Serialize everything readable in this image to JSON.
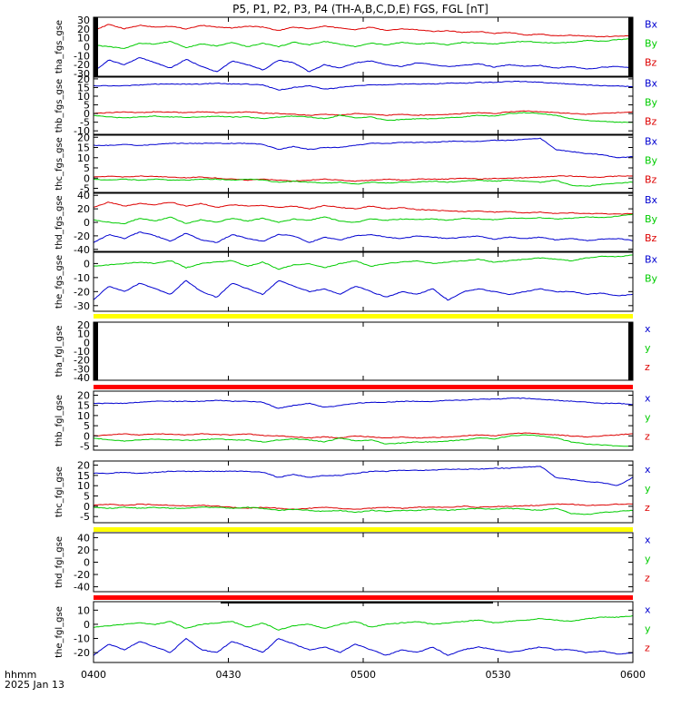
{
  "title": "P5, P1, P2, P3, P4 (TH-A,B,C,D,E) FGS, FGL [nT]",
  "footer": {
    "xlabel": "hhmm",
    "date": "2025 Jan 13",
    "x_ticks": [
      "0400",
      "0430",
      "0500",
      "0530",
      "0600"
    ]
  },
  "colors": {
    "x": "#0000d0",
    "y": "#00cc00",
    "z": "#dd0000",
    "bar_yellow": "#ffff00",
    "bar_red": "#ff0000"
  },
  "chart_data": [
    {
      "type": "line",
      "ylabel": "tha_fgs_gse",
      "y_ticks": [
        30,
        20,
        10,
        0,
        -10,
        -20,
        -30
      ],
      "ylim": [
        -33,
        33
      ],
      "series": [
        {
          "name": "Bz",
          "values": [
            18,
            25,
            20,
            24,
            22,
            23,
            20,
            24,
            22,
            21,
            23,
            22,
            18,
            22,
            20,
            23,
            21,
            19,
            22,
            18,
            20,
            19,
            17,
            18,
            16,
            17,
            15,
            16,
            13,
            14,
            12,
            13,
            12,
            11,
            12,
            12
          ]
        },
        {
          "name": "By",
          "values": [
            2,
            0,
            -2,
            4,
            3,
            6,
            -1,
            3,
            1,
            5,
            0,
            4,
            0,
            5,
            2,
            6,
            3,
            0,
            4,
            2,
            5,
            3,
            4,
            2,
            5,
            4,
            3,
            5,
            6,
            5,
            4,
            5,
            7,
            6,
            8,
            9
          ]
        },
        {
          "name": "Bx",
          "values": [
            -28,
            -15,
            -20,
            -12,
            -18,
            -24,
            -14,
            -22,
            -28,
            -16,
            -20,
            -26,
            -15,
            -18,
            -28,
            -20,
            -24,
            -18,
            -16,
            -20,
            -22,
            -18,
            -20,
            -22,
            -21,
            -19,
            -23,
            -20,
            -22,
            -21,
            -24,
            -22,
            -25,
            -23,
            -22,
            -24
          ]
        }
      ]
    },
    {
      "type": "line",
      "ylabel": "thb_fgs_gse",
      "y_ticks": [
        20,
        15,
        10,
        5,
        0,
        -5,
        -10
      ],
      "ylim": [
        -12,
        21
      ],
      "series": [
        {
          "name": "Bz",
          "values": [
            0,
            0.5,
            1,
            0.5,
            1,
            0.8,
            0.5,
            1,
            0.6,
            0.5,
            1,
            0.2,
            0,
            -0.5,
            -1,
            -0.5,
            -1,
            0,
            -0.5,
            -1,
            -0.5,
            -1,
            -0.8,
            -0.5,
            0,
            0.5,
            0,
            1,
            1.5,
            1,
            0.5,
            0,
            -0.5,
            0,
            0.5,
            1
          ]
        },
        {
          "name": "By",
          "values": [
            -1,
            -2,
            -2.5,
            -2,
            -1.5,
            -2,
            -2.2,
            -2,
            -1.5,
            -2,
            -2,
            -3,
            -2,
            -1.5,
            -2,
            -3,
            -1,
            -2.5,
            -2,
            -4,
            -3.5,
            -3,
            -3,
            -2.5,
            -2,
            -1,
            -1.5,
            0,
            0.5,
            0,
            -1,
            -3,
            -4,
            -4.5,
            -5,
            -5
          ]
        },
        {
          "name": "Bx",
          "values": [
            16,
            16,
            16,
            16.5,
            17,
            17,
            17,
            17,
            17.5,
            17,
            17,
            16.5,
            13.5,
            15,
            16,
            14,
            15,
            16,
            16.5,
            16.5,
            17,
            17,
            17,
            17.5,
            17.5,
            18,
            18,
            18.5,
            18.5,
            18,
            17.5,
            17,
            16.5,
            16,
            16,
            15.5
          ]
        }
      ]
    },
    {
      "type": "line",
      "ylabel": "thc_fgs_gse",
      "y_ticks": [
        20,
        15,
        10,
        5,
        0,
        -5
      ],
      "ylim": [
        -7,
        21
      ],
      "series": [
        {
          "name": "Bz",
          "values": [
            0.5,
            1,
            0.5,
            1,
            0.8,
            0.5,
            0.2,
            0.5,
            0,
            -0.5,
            -1,
            -0.5,
            -1,
            -1.5,
            -1,
            -0.5,
            -1,
            -1.5,
            -1,
            -0.5,
            -1,
            -0.5,
            -0.5,
            -0.5,
            0,
            -0.5,
            -0.2,
            0,
            0.2,
            0.5,
            1,
            1,
            0.5,
            0.5,
            1,
            1
          ]
        },
        {
          "name": "By",
          "values": [
            -0.5,
            -1,
            -0.5,
            -1,
            -0.5,
            -1,
            -1,
            -0.5,
            -0.5,
            -1,
            -0.5,
            -1,
            -2,
            -1.5,
            -2,
            -2.5,
            -2,
            -3,
            -2,
            -2.5,
            -2,
            -2,
            -1.5,
            -2,
            -1.5,
            -1,
            -1.5,
            -1,
            -1.5,
            -2,
            -1,
            -3.5,
            -4,
            -3,
            -2.5,
            -2
          ]
        },
        {
          "name": "Bx",
          "values": [
            16,
            16,
            16.5,
            16,
            16.5,
            17,
            17,
            17,
            17,
            17,
            17,
            16.5,
            14,
            15.5,
            14,
            15,
            15,
            16,
            17,
            17,
            17.5,
            17.5,
            17.5,
            18,
            18,
            18,
            18.5,
            18.5,
            19,
            19.5,
            14,
            13,
            12,
            11.5,
            10,
            10.5
          ]
        }
      ]
    },
    {
      "type": "line",
      "ylabel": "thd_fgs_gse",
      "y_ticks": [
        40,
        20,
        0,
        -20,
        -40
      ],
      "ylim": [
        -43,
        43
      ],
      "series": [
        {
          "name": "Bz",
          "values": [
            22,
            30,
            24,
            28,
            26,
            30,
            24,
            28,
            22,
            26,
            24,
            25,
            22,
            24,
            20,
            25,
            22,
            20,
            24,
            20,
            22,
            19,
            18,
            17,
            16,
            17,
            15,
            16,
            14,
            15,
            13,
            14,
            13,
            13,
            12,
            13
          ]
        },
        {
          "name": "By",
          "values": [
            4,
            0,
            -2,
            6,
            2,
            8,
            -2,
            4,
            0,
            6,
            2,
            6,
            0,
            5,
            3,
            8,
            2,
            0,
            5,
            3,
            5,
            4,
            5,
            3,
            6,
            5,
            4,
            6,
            6,
            7,
            5,
            6,
            8,
            7,
            9,
            12
          ]
        },
        {
          "name": "Bx",
          "values": [
            -30,
            -18,
            -24,
            -14,
            -20,
            -28,
            -16,
            -26,
            -30,
            -18,
            -24,
            -28,
            -18,
            -20,
            -30,
            -22,
            -26,
            -20,
            -18,
            -22,
            -24,
            -20,
            -22,
            -24,
            -22,
            -20,
            -25,
            -22,
            -24,
            -22,
            -26,
            -24,
            -27,
            -25,
            -24,
            -27
          ]
        }
      ]
    },
    {
      "type": "line",
      "ylabel": "the_fgs_gse",
      "y_ticks": [
        0,
        -10,
        -20,
        -30
      ],
      "ylim": [
        -34,
        8
      ],
      "series": [
        {
          "name": "By",
          "values": [
            -2,
            -1,
            0,
            1,
            0,
            2,
            -3,
            0,
            1,
            2,
            -2,
            1,
            -4,
            -1,
            0,
            -3,
            0,
            2,
            -2,
            0,
            1,
            2,
            0,
            1,
            2,
            3,
            1,
            2,
            3,
            4,
            3,
            2,
            4,
            5,
            5,
            6
          ]
        },
        {
          "name": "Bx",
          "values": [
            -26,
            -16,
            -20,
            -14,
            -18,
            -22,
            -12,
            -20,
            -24,
            -14,
            -18,
            -22,
            -12,
            -16,
            -20,
            -18,
            -22,
            -16,
            -20,
            -24,
            -20,
            -22,
            -18,
            -26,
            -20,
            -18,
            -20,
            -22,
            -20,
            -18,
            -20,
            -20,
            -22,
            -21,
            -23,
            -22
          ]
        }
      ]
    },
    {
      "type": "line",
      "ylabel": "tha_fgl_gse",
      "y_ticks": [
        20,
        10,
        0,
        -10,
        -20,
        -30,
        -40
      ],
      "ylim": [
        -43,
        23
      ],
      "series": [
        {
          "name": "z",
          "values": []
        },
        {
          "name": "y",
          "values": []
        },
        {
          "name": "x",
          "values": []
        }
      ]
    },
    {
      "type": "line",
      "ylabel": "thb_fgl_gse",
      "y_ticks": [
        20,
        15,
        10,
        5,
        0,
        -5
      ],
      "ylim": [
        -7,
        22
      ],
      "series": [
        {
          "name": "z",
          "values": [
            0,
            0.5,
            1,
            0.5,
            1,
            0.8,
            0.5,
            1,
            0.6,
            0.5,
            1,
            0.2,
            0,
            -0.5,
            -1,
            -0.5,
            -1,
            0,
            -0.5,
            -1,
            -0.5,
            -1,
            -0.8,
            -0.5,
            0,
            0.5,
            0,
            1,
            1.5,
            1,
            0.5,
            0,
            -0.5,
            0,
            0.5,
            1
          ]
        },
        {
          "name": "y",
          "values": [
            -1,
            -2,
            -2.5,
            -2,
            -1.5,
            -2,
            -2.2,
            -2,
            -1.5,
            -2,
            -2,
            -3,
            -2,
            -1.5,
            -2,
            -3,
            -1,
            -2.5,
            -2,
            -4,
            -3.5,
            -3,
            -3,
            -2.5,
            -2,
            -1,
            -1.5,
            0,
            0.5,
            0,
            -1,
            -3,
            -4,
            -4.5,
            -5,
            -5
          ]
        },
        {
          "name": "x",
          "values": [
            16,
            16,
            16,
            16.5,
            17,
            17,
            17,
            17,
            17.5,
            17,
            17,
            16.5,
            13.5,
            15,
            16,
            14,
            15,
            16,
            16.5,
            16.5,
            17,
            17,
            17,
            17.5,
            17.5,
            18,
            18,
            18.5,
            18.5,
            18,
            17.5,
            17,
            16.5,
            16,
            16,
            15.5
          ]
        }
      ]
    },
    {
      "type": "line",
      "ylabel": "thc_fgl_gse",
      "y_ticks": [
        20,
        15,
        10,
        5,
        0,
        -5
      ],
      "ylim": [
        -8,
        22
      ],
      "series": [
        {
          "name": "z",
          "values": [
            0.5,
            1,
            0.5,
            1,
            0.8,
            0.5,
            0.2,
            0.5,
            0,
            -0.5,
            -1,
            -0.5,
            -1,
            -1.5,
            -1,
            -0.5,
            -1,
            -1.5,
            -1,
            -0.5,
            -1,
            -0.5,
            -0.5,
            -0.5,
            0,
            -0.5,
            -0.2,
            0,
            0.2,
            0.5,
            1,
            1,
            0.5,
            0.5,
            1,
            1
          ]
        },
        {
          "name": "y",
          "values": [
            -0.5,
            -1,
            -0.5,
            -1,
            -0.5,
            -1,
            -1,
            -0.5,
            -0.5,
            -1,
            -0.5,
            -1,
            -2,
            -1.5,
            -2,
            -2.5,
            -2,
            -3,
            -2,
            -2.5,
            -2,
            -2,
            -1.5,
            -2,
            -1.5,
            -1,
            -1.5,
            -1,
            -1.5,
            -2,
            -1,
            -3.5,
            -4,
            -3,
            -2.5,
            -2
          ]
        },
        {
          "name": "x",
          "values": [
            16,
            16,
            16.5,
            16,
            16.5,
            17,
            17,
            17,
            17,
            17,
            17,
            16.5,
            14,
            15.5,
            14,
            15,
            15,
            16,
            17,
            17,
            17.5,
            17.5,
            17.5,
            18,
            18,
            18,
            18.5,
            18.5,
            19,
            19.5,
            14,
            13,
            12,
            11.5,
            10,
            14
          ]
        }
      ]
    },
    {
      "type": "line",
      "ylabel": "thd_fgl_gse",
      "y_ticks": [
        40,
        20,
        0,
        -20,
        -40
      ],
      "ylim": [
        -48,
        48
      ],
      "series": [
        {
          "name": "z",
          "values": []
        },
        {
          "name": "y",
          "values": []
        },
        {
          "name": "x",
          "values": []
        }
      ]
    },
    {
      "type": "line",
      "ylabel": "the_fgl_gse",
      "y_ticks": [
        10,
        0,
        -10,
        -20
      ],
      "ylim": [
        -27,
        16
      ],
      "series": [
        {
          "name": "z",
          "values": []
        },
        {
          "name": "y",
          "values": [
            -2,
            -1,
            0,
            1,
            0,
            2,
            -3,
            0,
            1,
            2,
            -2,
            1,
            -4,
            -1,
            0,
            -3,
            0,
            2,
            -2,
            0,
            1,
            2,
            0,
            1,
            2,
            3,
            1,
            2,
            3,
            4,
            3,
            2,
            4,
            5,
            5,
            6
          ]
        },
        {
          "name": "x",
          "values": [
            -22,
            -14,
            -18,
            -12,
            -16,
            -20,
            -10,
            -18,
            -20,
            -12,
            -16,
            -20,
            -10,
            -14,
            -18,
            -16,
            -20,
            -14,
            -18,
            -22,
            -18,
            -20,
            -16,
            -22,
            -18,
            -16,
            -18,
            -20,
            -18,
            -16,
            -18,
            -18,
            -20,
            -19,
            -21,
            -20
          ]
        }
      ]
    }
  ]
}
